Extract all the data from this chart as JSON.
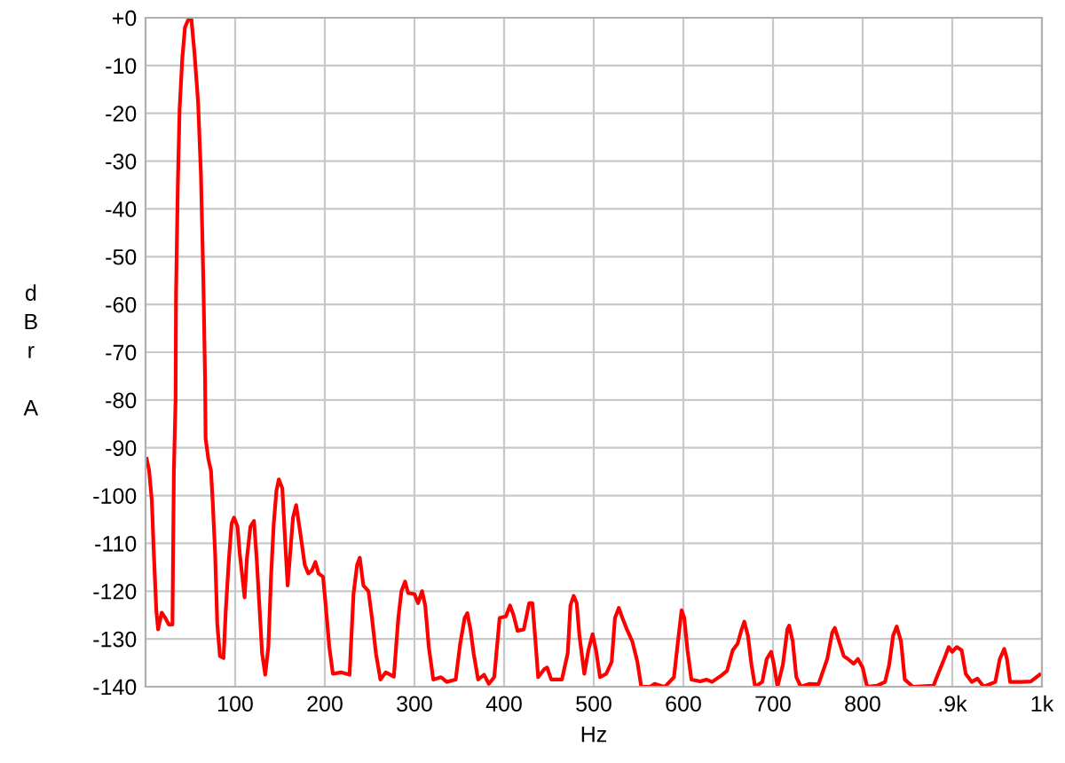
{
  "chart_data": {
    "type": "line",
    "xlabel": "Hz",
    "ylabel": "dBr A",
    "xlim": [
      0,
      1000
    ],
    "ylim": [
      -140,
      0
    ],
    "xticks": [
      100,
      200,
      300,
      400,
      500,
      600,
      700,
      800,
      {
        "value": 900,
        "label": ".9k"
      },
      {
        "value": 1000,
        "label": "1k"
      }
    ],
    "yticks": [
      {
        "value": 0,
        "label": "+0"
      },
      -10,
      -20,
      -30,
      -40,
      -50,
      -60,
      -70,
      -80,
      -90,
      -100,
      -110,
      -120,
      -130,
      -140
    ],
    "grid": true,
    "marker": "none",
    "line_style": "solid",
    "series": [
      {
        "color": "#ff0000",
        "x": [
          1.3,
          4,
          7,
          9,
          12,
          14,
          18,
          22,
          26,
          30,
          31.6,
          33.5,
          34,
          36,
          38,
          41,
          44,
          48.7,
          51,
          54.6,
          58.6,
          61.8,
          64.5,
          66.4,
          67,
          70,
          73,
          75,
          77.6,
          80,
          83,
          87,
          89.5,
          93,
          96,
          98.7,
          102.6,
          105,
          108,
          110.5,
          113,
          117,
          121,
          124,
          127,
          130,
          133.5,
          137,
          140,
          143,
          146,
          148.7,
          152.6,
          155,
          158.5,
          161,
          164.5,
          168,
          172,
          175,
          177.6,
          181.6,
          185.5,
          189.5,
          193,
          198,
          201,
          205,
          209,
          218,
          227.6,
          232,
          236,
          239,
          243,
          248.7,
          252.6,
          257,
          262,
          268,
          277,
          282,
          285.5,
          289.5,
          293,
          300,
          304,
          308.5,
          312,
          316,
          321,
          329.6,
          336,
          346,
          351,
          356,
          359,
          362.5,
          366,
          371,
          377.6,
          383,
          389,
          395,
          402,
          406.6,
          410.5,
          415,
          422,
          428,
          431.6,
          435,
          438,
          445,
          448,
          452.6,
          464.5,
          471,
          474,
          477.6,
          481,
          484,
          489.5,
          494,
          498.7,
          502.6,
          507,
          514,
          520,
          523.7,
          528,
          532,
          537,
          543,
          548.7,
          553,
          563,
          568,
          575,
          579.6,
          589.5,
          594,
          598,
          601,
          604.6,
          609,
          619,
          625.7,
          632,
          642,
          648.7,
          655,
          660.5,
          665,
          668,
          672,
          676,
          680,
          688,
          693,
          698,
          701,
          705,
          711,
          716,
          718,
          722,
          726,
          731,
          741,
          750.7,
          760.5,
          766,
          769,
          773.7,
          779,
          783.6,
          790,
          794.7,
          800,
          805,
          816,
          825,
          829.6,
          834,
          838,
          842.8,
          847,
          856,
          879,
          885.5,
          891,
          896,
          900,
          905,
          910.5,
          915,
          921.7,
          928,
          935,
          948,
          953,
          958,
          961,
          964.5,
          977.6,
          987.5,
          997.4
        ],
        "values": [
          -92.3,
          -94.8,
          -101,
          -111,
          -124,
          -128,
          -124.5,
          -125.6,
          -127,
          -127,
          -94.8,
          -80,
          -58,
          -35,
          -19,
          -8.5,
          -2,
          0,
          0,
          -7.4,
          -17.6,
          -32.8,
          -55,
          -75.6,
          -88,
          -92.3,
          -94.8,
          -101.6,
          -112,
          -126.8,
          -133.6,
          -134,
          -124,
          -113.3,
          -105.9,
          -104.6,
          -106.5,
          -112,
          -117,
          -121.3,
          -113.3,
          -106.5,
          -105.3,
          -113.3,
          -123,
          -133,
          -137.5,
          -131.7,
          -117,
          -105.9,
          -99,
          -96.6,
          -98.5,
          -107,
          -118.8,
          -113,
          -104.6,
          -102,
          -107,
          -111,
          -114.5,
          -116.3,
          -115.7,
          -113.9,
          -116.3,
          -117,
          -123,
          -131.7,
          -137.3,
          -137,
          -137.5,
          -120.6,
          -114.5,
          -113,
          -118.8,
          -120,
          -125.6,
          -133,
          -138.5,
          -137,
          -137.9,
          -125.6,
          -120,
          -118,
          -120.4,
          -120.6,
          -122.5,
          -120,
          -123,
          -131.7,
          -138.5,
          -138,
          -139,
          -138.5,
          -131,
          -125.6,
          -124.6,
          -128,
          -133,
          -138.5,
          -137.5,
          -139.4,
          -138,
          -125.6,
          -125.3,
          -123,
          -125,
          -128.3,
          -128,
          -122.5,
          -122.5,
          -130.5,
          -138,
          -136.3,
          -136,
          -138.5,
          -138.5,
          -133,
          -123,
          -121,
          -122.5,
          -129.3,
          -137.3,
          -132.4,
          -129,
          -132.4,
          -138,
          -137.3,
          -134.8,
          -125.6,
          -123.5,
          -125.6,
          -128,
          -130.5,
          -134.8,
          -140,
          -140,
          -139.4,
          -139.8,
          -140,
          -138,
          -130.5,
          -124,
          -125.6,
          -132.4,
          -138.5,
          -138.9,
          -138.5,
          -139,
          -137.7,
          -136.7,
          -132.4,
          -131,
          -128,
          -126.4,
          -129.3,
          -135.4,
          -140,
          -139,
          -134.2,
          -132.7,
          -135.4,
          -140,
          -135.4,
          -128,
          -127.2,
          -130.5,
          -138,
          -140,
          -139.4,
          -139.5,
          -134.2,
          -128.7,
          -127.7,
          -130.5,
          -133.6,
          -134.2,
          -135.2,
          -134.2,
          -136,
          -140,
          -139.8,
          -139,
          -135.4,
          -129.3,
          -127.4,
          -130.5,
          -138.5,
          -140,
          -139.8,
          -136.7,
          -134.2,
          -131.7,
          -132.7,
          -131.7,
          -132.4,
          -137.3,
          -139,
          -138.3,
          -140,
          -139,
          -134.2,
          -132.1,
          -134.2,
          -139,
          -139,
          -138.9,
          -137.5
        ]
      }
    ]
  }
}
